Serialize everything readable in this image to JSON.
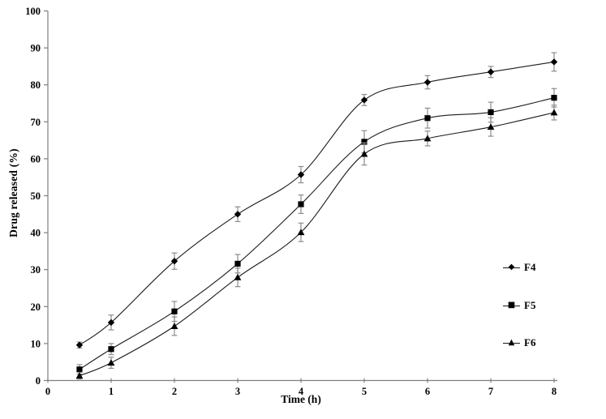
{
  "figure": {
    "background": "#ffffff",
    "axis_color": "#7f7f7f",
    "line_color": "#1a1a1a",
    "marker_color": "#000000",
    "error_bar_color": "#8c8c8c",
    "text_color": "#000000"
  },
  "chart_data": {
    "type": "line",
    "title": "",
    "xlabel": "Time (h)",
    "ylabel": "Drug released (%)",
    "xlim": [
      0,
      8
    ],
    "ylim": [
      0,
      100
    ],
    "x_ticks": [
      0,
      1,
      2,
      3,
      4,
      5,
      6,
      7,
      8
    ],
    "y_ticks": [
      0,
      10,
      20,
      30,
      40,
      50,
      60,
      70,
      80,
      90,
      100
    ],
    "grid": false,
    "legend_position": "right-middle",
    "line_style": "smooth",
    "error_bars": true,
    "x": [
      0.5,
      1,
      2,
      3,
      4,
      5,
      6,
      7,
      8
    ],
    "series": [
      {
        "name": "F4",
        "marker": "diamond",
        "marker_glyph": "◆",
        "values": [
          9.6,
          15.7,
          32.3,
          45.0,
          55.7,
          75.9,
          80.7,
          83.5,
          86.2
        ],
        "errors": [
          0.8,
          2.0,
          2.2,
          2.0,
          2.2,
          1.5,
          1.8,
          1.5,
          2.5
        ]
      },
      {
        "name": "F5",
        "marker": "square",
        "marker_glyph": "■",
        "values": [
          3.0,
          8.5,
          18.7,
          31.6,
          47.7,
          64.6,
          71.0,
          72.6,
          76.5
        ],
        "errors": [
          1.3,
          1.5,
          2.7,
          2.5,
          2.5,
          3.0,
          2.7,
          2.7,
          2.5
        ]
      },
      {
        "name": "F6",
        "marker": "triangle",
        "marker_glyph": "▲",
        "values": [
          1.3,
          4.8,
          14.7,
          27.9,
          40.1,
          61.3,
          65.5,
          68.6,
          72.5
        ],
        "errors": [
          0.9,
          1.5,
          2.5,
          2.5,
          2.5,
          3.0,
          2.0,
          2.5,
          2.0
        ]
      }
    ]
  }
}
